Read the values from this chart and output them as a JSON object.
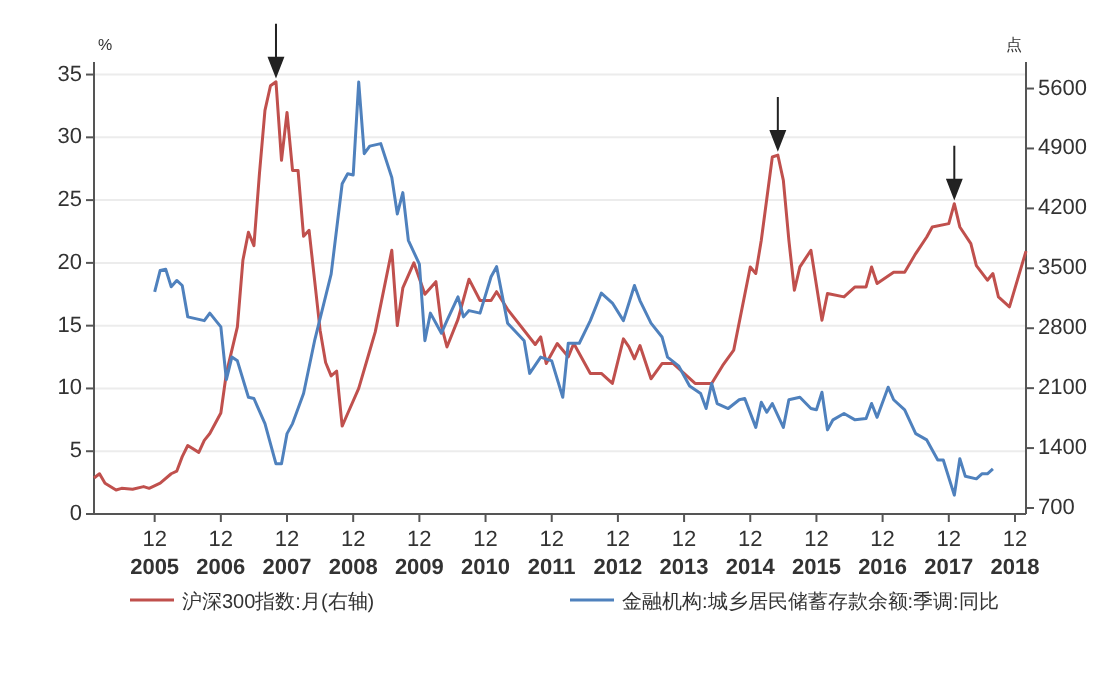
{
  "chart_data": {
    "type": "line",
    "ylabel": "%",
    "y2label": "点",
    "xlim": [
      "2005-01",
      "2019-02"
    ],
    "xticks": [
      {
        "value": "2005-12",
        "label": "12\n2005"
      },
      {
        "value": "2006-12",
        "label": "12\n2006"
      },
      {
        "value": "2007-12",
        "label": "12\n2007"
      },
      {
        "value": "2008-12",
        "label": "12\n2008"
      },
      {
        "value": "2009-12",
        "label": "12\n2009"
      },
      {
        "value": "2010-12",
        "label": "12\n2010"
      },
      {
        "value": "2011-12",
        "label": "12\n2011"
      },
      {
        "value": "2012-12",
        "label": "12\n2012"
      },
      {
        "value": "2013-12",
        "label": "12\n2013"
      },
      {
        "value": "2014-12",
        "label": "12\n2014"
      },
      {
        "value": "2015-12",
        "label": "12\n2015"
      },
      {
        "value": "2016-12",
        "label": "12\n2016"
      },
      {
        "value": "2017-12",
        "label": "12\n2017"
      },
      {
        "value": "2018-12",
        "label": "12\n2018"
      }
    ],
    "ylim": [
      0,
      36
    ],
    "yticks": [
      0,
      5,
      10,
      15,
      20,
      25,
      30,
      35
    ],
    "y2lim": [
      630,
      5910
    ],
    "y2ticks": [
      700,
      1400,
      2100,
      2800,
      3500,
      4200,
      4900,
      5600
    ],
    "grid": "y",
    "legend": "bottom",
    "series": [
      {
        "name": "沪深300指数:月(右轴)",
        "color": "#c0504d",
        "axis": "y2",
        "x": [
          "2005-01",
          "2005-02",
          "2005-03",
          "2005-05",
          "2005-06",
          "2005-08",
          "2005-10",
          "2005-11",
          "2006-01",
          "2006-03",
          "2006-04",
          "2006-05",
          "2006-06",
          "2006-08",
          "2006-09",
          "2006-10",
          "2006-12",
          "2007-01",
          "2007-03",
          "2007-04",
          "2007-05",
          "2007-06",
          "2007-07",
          "2007-08",
          "2007-09",
          "2007-10",
          "2007-11",
          "2007-12",
          "2008-01",
          "2008-02",
          "2008-03",
          "2008-04",
          "2008-05",
          "2008-06",
          "2008-07",
          "2008-08",
          "2008-09",
          "2008-10",
          "2008-11",
          "2009-01",
          "2009-03",
          "2009-04",
          "2009-07",
          "2009-08",
          "2009-09",
          "2009-11",
          "2010-01",
          "2010-03",
          "2010-04",
          "2010-05",
          "2010-07",
          "2010-09",
          "2010-11",
          "2011-01",
          "2011-02",
          "2011-04",
          "2011-09",
          "2011-10",
          "2011-11",
          "2012-01",
          "2012-03",
          "2012-04",
          "2012-07",
          "2012-09",
          "2012-11",
          "2013-01",
          "2013-02",
          "2013-03",
          "2013-04",
          "2013-06",
          "2013-08",
          "2013-10",
          "2013-12",
          "2014-02",
          "2014-05",
          "2014-07",
          "2014-09",
          "2014-12",
          "2015-01",
          "2015-02",
          "2015-04",
          "2015-05",
          "2015-06",
          "2015-07",
          "2015-08",
          "2015-09",
          "2015-11",
          "2016-01",
          "2016-02",
          "2016-05",
          "2016-07",
          "2016-09",
          "2016-10",
          "2016-11",
          "2017-02",
          "2017-04",
          "2017-06",
          "2017-08",
          "2017-09",
          "2017-12",
          "2018-01",
          "2018-02",
          "2018-04",
          "2018-05",
          "2018-07",
          "2018-08",
          "2018-09",
          "2018-11",
          "2019-02"
        ],
        "values": [
          1050,
          1100,
          990,
          910,
          930,
          920,
          950,
          930,
          990,
          1100,
          1130,
          1300,
          1430,
          1350,
          1490,
          1570,
          1810,
          2272,
          2816,
          3594,
          3921,
          3765,
          4606,
          5345,
          5633,
          5679,
          4761,
          5321,
          4644,
          4644,
          3874,
          3944,
          3361,
          2777,
          2400,
          2244,
          2300,
          1657,
          1804,
          2097,
          2537,
          2757,
          3711,
          2831,
          3271,
          3564,
          3197,
          3344,
          2831,
          2581,
          2904,
          3373,
          3124,
          3124,
          3227,
          3021,
          2610,
          2699,
          2388,
          2622,
          2466,
          2622,
          2272,
          2272,
          2155,
          2676,
          2583,
          2443,
          2598,
          2209,
          2388,
          2388,
          2272,
          2155,
          2155,
          2365,
          2544,
          3516,
          3439,
          3828,
          4800,
          4823,
          4528,
          3828,
          3244,
          3516,
          3711,
          2894,
          3205,
          3166,
          3283,
          3283,
          3516,
          3322,
          3454,
          3454,
          3672,
          3866,
          3983,
          4022,
          4255,
          3983,
          3789,
          3532,
          3361,
          3439,
          3166,
          3050,
          3700
        ]
      },
      {
        "name": "金融机构:城乡居民储蓄存款余额:季调:同比",
        "color": "#4f81bd",
        "x": [
          "2005-12",
          "2006-01",
          "2006-02",
          "2006-03",
          "2006-04",
          "2006-05",
          "2006-06",
          "2006-08",
          "2006-09",
          "2006-10",
          "2006-12",
          "2007-01",
          "2007-02",
          "2007-03",
          "2007-05",
          "2007-06",
          "2007-08",
          "2007-10",
          "2007-11",
          "2007-12",
          "2008-01",
          "2008-03",
          "2008-05",
          "2008-08",
          "2008-10",
          "2008-11",
          "2008-12",
          "2009-01",
          "2009-02",
          "2009-03",
          "2009-05",
          "2009-07",
          "2009-08",
          "2009-09",
          "2009-10",
          "2009-12",
          "2010-01",
          "2010-02",
          "2010-04",
          "2010-05",
          "2010-07",
          "2010-08",
          "2010-09",
          "2010-11",
          "2011-01",
          "2011-02",
          "2011-04",
          "2011-07",
          "2011-08",
          "2011-10",
          "2011-12",
          "2012-02",
          "2012-03",
          "2012-05",
          "2012-07",
          "2012-09",
          "2012-11",
          "2013-01",
          "2013-03",
          "2013-04",
          "2013-06",
          "2013-08",
          "2013-09",
          "2013-11",
          "2014-01",
          "2014-03",
          "2014-04",
          "2014-05",
          "2014-06",
          "2014-08",
          "2014-10",
          "2014-11",
          "2015-01",
          "2015-02",
          "2015-03",
          "2015-04",
          "2015-06",
          "2015-07",
          "2015-09",
          "2015-11",
          "2015-12",
          "2016-01",
          "2016-02",
          "2016-03",
          "2016-05",
          "2016-07",
          "2016-09",
          "2016-10",
          "2016-11",
          "2017-01",
          "2017-02",
          "2017-04",
          "2017-06",
          "2017-08",
          "2017-10",
          "2017-11",
          "2018-01",
          "2018-02",
          "2018-03",
          "2018-05",
          "2018-06",
          "2018-07",
          "2018-08"
        ],
        "values": [
          17.7,
          19.4,
          19.5,
          18.1,
          18.6,
          18.2,
          15.7,
          15.5,
          15.4,
          16.0,
          14.9,
          10.7,
          12.5,
          12.2,
          9.3,
          9.2,
          7.2,
          4.0,
          4.0,
          6.4,
          7.2,
          9.6,
          13.8,
          19.1,
          26.3,
          27.1,
          27.0,
          34.4,
          28.7,
          29.3,
          29.5,
          26.8,
          23.9,
          25.6,
          21.8,
          19.9,
          13.8,
          16.0,
          14.4,
          15.4,
          17.3,
          15.7,
          16.2,
          16.0,
          18.9,
          19.7,
          15.2,
          13.8,
          11.2,
          12.5,
          12.2,
          9.3,
          13.6,
          13.6,
          15.4,
          17.6,
          16.8,
          15.4,
          18.2,
          17.0,
          15.2,
          14.1,
          12.5,
          11.8,
          10.2,
          9.6,
          8.4,
          10.4,
          8.8,
          8.4,
          9.1,
          9.2,
          6.9,
          8.9,
          8.1,
          8.8,
          6.9,
          9.1,
          9.3,
          8.4,
          8.3,
          9.7,
          6.7,
          7.5,
          8.0,
          7.5,
          7.6,
          8.8,
          7.7,
          10.1,
          9.1,
          8.3,
          6.4,
          5.9,
          4.3,
          4.3,
          1.5,
          4.4,
          3.0,
          2.8,
          3.2,
          3.2,
          3.6
        ]
      }
    ]
  }
}
